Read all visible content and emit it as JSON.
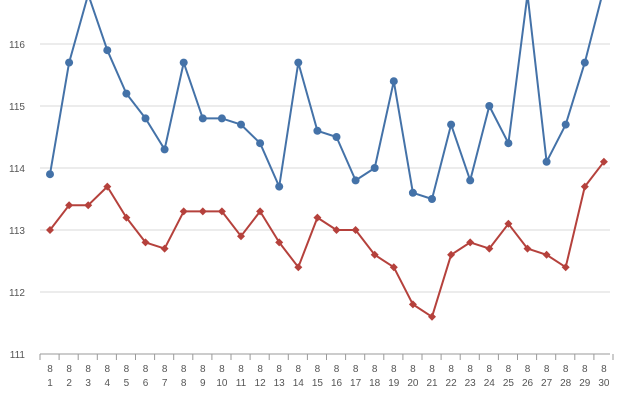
{
  "chart_data": {
    "type": "line",
    "title": "",
    "xlabel": "",
    "ylabel": "",
    "ylim": [
      111,
      117
    ],
    "yticks": [
      111,
      112,
      113,
      114,
      115,
      116
    ],
    "grid": true,
    "legend": "none",
    "x_month": "8",
    "categories": [
      "1",
      "2",
      "3",
      "4",
      "5",
      "6",
      "7",
      "8",
      "9",
      "10",
      "11",
      "12",
      "13",
      "14",
      "15",
      "16",
      "17",
      "18",
      "19",
      "20",
      "21",
      "22",
      "23",
      "24",
      "25",
      "26",
      "27",
      "28",
      "29",
      "30"
    ],
    "series": [
      {
        "color": "#4472a8",
        "marker": "circle",
        "values": [
          113.9,
          115.7,
          116.8,
          115.9,
          115.2,
          114.8,
          114.3,
          115.7,
          114.8,
          114.8,
          114.7,
          114.4,
          113.7,
          115.7,
          114.6,
          114.5,
          113.8,
          114.0,
          115.4,
          113.6,
          113.5,
          114.7,
          113.8,
          115.0,
          114.4,
          116.8,
          114.1,
          114.7,
          115.7,
          116.9
        ]
      },
      {
        "color": "#b5413c",
        "marker": "diamond",
        "values": [
          113.0,
          113.4,
          113.4,
          113.7,
          113.2,
          112.8,
          112.7,
          113.3,
          113.3,
          113.3,
          112.9,
          113.3,
          112.8,
          112.4,
          113.2,
          113.0,
          113.0,
          112.6,
          112.4,
          111.8,
          111.6,
          112.6,
          112.8,
          112.7,
          113.1,
          112.7,
          112.6,
          112.4,
          113.7,
          114.1
        ]
      }
    ]
  }
}
